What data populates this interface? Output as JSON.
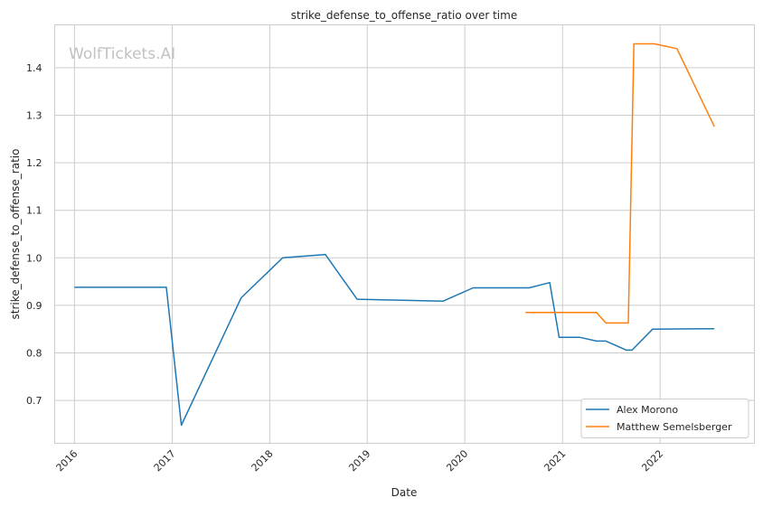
{
  "watermark": "WolfTickets.AI",
  "chart_data": {
    "type": "line",
    "title": "strike_defense_to_offense_ratio over time",
    "xlabel": "Date",
    "ylabel": "strike_defense_to_offense_ratio",
    "x_ticks": [
      "2016",
      "2017",
      "2018",
      "2019",
      "2020",
      "2021",
      "2022"
    ],
    "y_ticks": [
      "0.7",
      "0.8",
      "0.9",
      "1.0",
      "1.1",
      "1.2",
      "1.3",
      "1.4"
    ],
    "xlim": [
      "2015-10-19",
      "2022-12-20"
    ],
    "ylim": [
      0.61,
      1.49
    ],
    "grid": true,
    "legend_position": "lower-right",
    "series": [
      {
        "name": "Alex Morono",
        "color": "#1f77b4",
        "points": [
          {
            "x": "2016-01-01",
            "y": 0.938
          },
          {
            "x": "2016-12-10",
            "y": 0.938
          },
          {
            "x": "2017-02-04",
            "y": 0.648
          },
          {
            "x": "2017-09-16",
            "y": 0.916
          },
          {
            "x": "2018-02-18",
            "y": 1.0
          },
          {
            "x": "2018-07-28",
            "y": 1.007
          },
          {
            "x": "2018-11-24",
            "y": 0.913
          },
          {
            "x": "2019-10-12",
            "y": 0.909
          },
          {
            "x": "2020-02-01",
            "y": 0.937
          },
          {
            "x": "2020-08-29",
            "y": 0.937
          },
          {
            "x": "2020-11-14",
            "y": 0.948
          },
          {
            "x": "2020-12-19",
            "y": 0.833
          },
          {
            "x": "2021-03-06",
            "y": 0.833
          },
          {
            "x": "2021-05-08",
            "y": 0.825
          },
          {
            "x": "2021-06-12",
            "y": 0.825
          },
          {
            "x": "2021-08-28",
            "y": 0.806
          },
          {
            "x": "2021-09-18",
            "y": 0.806
          },
          {
            "x": "2021-12-04",
            "y": 0.85
          },
          {
            "x": "2022-07-23",
            "y": 0.851
          }
        ]
      },
      {
        "name": "Matthew Semelsberger",
        "color": "#ff7f0e",
        "points": [
          {
            "x": "2020-08-15",
            "y": 0.885
          },
          {
            "x": "2021-05-08",
            "y": 0.885
          },
          {
            "x": "2021-06-12",
            "y": 0.863
          },
          {
            "x": "2021-09-04",
            "y": 0.863
          },
          {
            "x": "2021-09-25",
            "y": 1.45
          },
          {
            "x": "2021-12-11",
            "y": 1.45
          },
          {
            "x": "2022-03-05",
            "y": 1.44
          },
          {
            "x": "2022-07-23",
            "y": 1.276
          }
        ]
      }
    ]
  }
}
